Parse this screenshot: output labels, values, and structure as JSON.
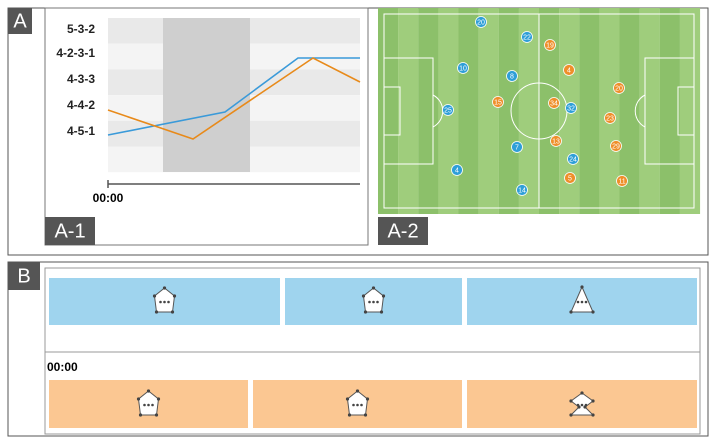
{
  "panel_a": {
    "label": "A",
    "chart": {
      "label": "A-1",
      "formations": [
        "5-3-2",
        "4-2-3-1",
        "4-3-3",
        "4-4-2",
        "4-5-1"
      ],
      "time": "00:00"
    },
    "pitch": {
      "label": "A-2",
      "blue_players": [
        20,
        22,
        10,
        8,
        25,
        32,
        7,
        24,
        4,
        14
      ],
      "orange_players": [
        19,
        4,
        15,
        34,
        20,
        23,
        13,
        29,
        5,
        11
      ]
    }
  },
  "panel_b": {
    "label": "B",
    "time": "00:00"
  }
}
